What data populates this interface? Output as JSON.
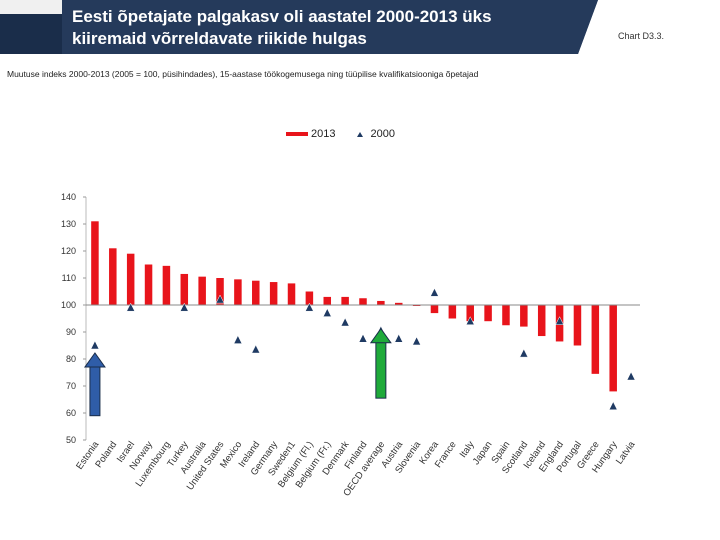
{
  "header": {
    "title_line1": "Eesti õpetajate palgakasv oli aastatel 2000-2013 üks",
    "title_line2": "kiiremaid võrreldavate riikide hulgas",
    "chart_ref": "Chart D3.3.",
    "subtitle": "Muutuse indeks 2000-2013 (2005 = 100, püsihindades), 15-aastase töökogemusega ning tüüpilise kvalifikatsiooniga õpetajad"
  },
  "colors": {
    "bar": "#e8141b",
    "marker": "#1f3a63",
    "title_bg": "#253a5b",
    "blue_arrow": "#2f5da8",
    "green_arrow": "#1faa3a"
  },
  "chart_data": {
    "type": "bar",
    "title": "",
    "legend": [
      {
        "name": "2013",
        "style": "bar"
      },
      {
        "name": "2000",
        "style": "triangle-marker"
      }
    ],
    "ylim": [
      50,
      140
    ],
    "yticks": [
      50,
      60,
      70,
      80,
      90,
      100,
      110,
      120,
      130,
      140
    ],
    "baseline": 100,
    "categories": [
      "Estonia",
      "Poland",
      "Israel",
      "Norway",
      "Luxembourg",
      "Turkey",
      "Australia",
      "United States",
      "Mexico",
      "Ireland",
      "Germany",
      "Sweden1",
      "Belgium (Fl.)",
      "Belgium (Fr.)",
      "Denmark",
      "Finland",
      "OECD average",
      "Austria",
      "Slovenia",
      "Korea",
      "France",
      "Italy",
      "Japan",
      "Spain",
      "Scotland",
      "Iceland",
      "England",
      "Portugal",
      "Greece",
      "Hungary",
      "Latvia"
    ],
    "series": [
      {
        "name": "2013",
        "values": [
          131,
          121,
          119,
          115,
          114.5,
          111.5,
          110.5,
          110,
          109.5,
          109,
          108.5,
          108,
          105,
          103,
          103,
          102.5,
          101.5,
          100.8,
          100,
          97,
          95,
          94,
          94,
          92.5,
          92,
          88.5,
          86.5,
          85,
          74.5,
          68,
          null
        ]
      },
      {
        "name": "2000",
        "values": [
          85,
          null,
          99,
          null,
          null,
          99,
          null,
          102,
          87,
          83.5,
          null,
          null,
          99,
          97,
          93.5,
          87.5,
          90.5,
          87.5,
          86.5,
          104.5,
          null,
          94,
          null,
          null,
          82,
          null,
          94,
          null,
          null,
          62.5,
          73.5
        ]
      }
    ]
  },
  "annotations": [
    {
      "name": "blue-arrow-estonia",
      "target": "Estonia",
      "color": "#2f5da8"
    },
    {
      "name": "green-arrow-oecd",
      "target": "OECD average",
      "color": "#1faa3a"
    }
  ]
}
